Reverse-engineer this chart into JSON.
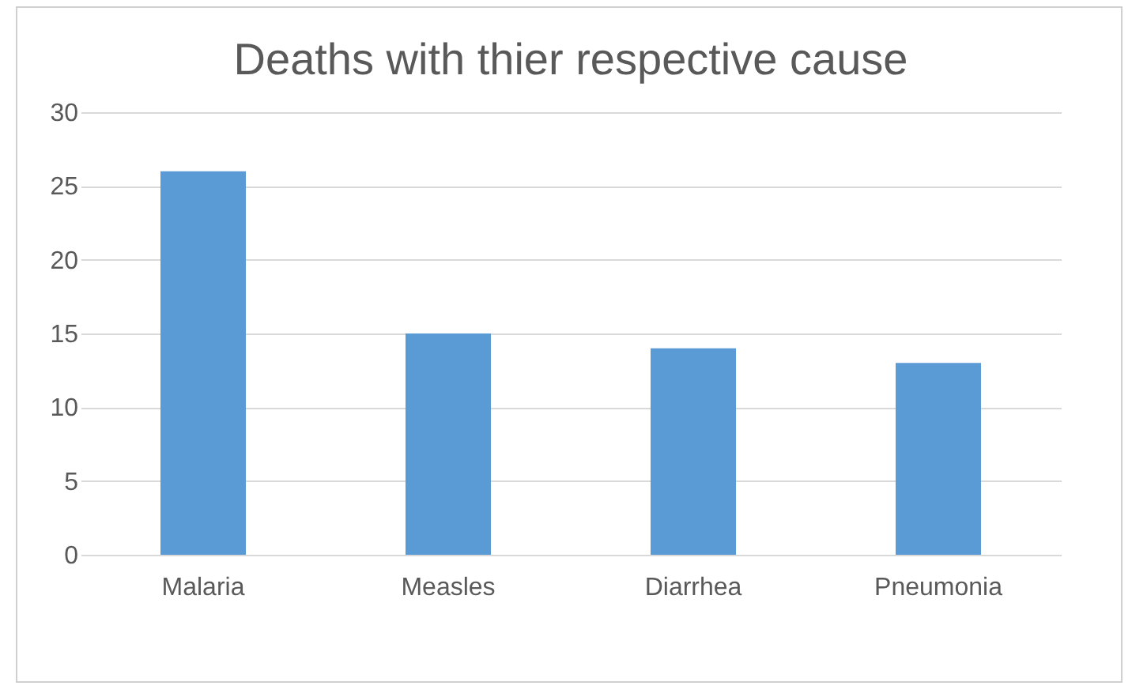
{
  "chart_data": {
    "type": "bar",
    "title": "Deaths with thier respective cause",
    "categories": [
      "Malaria",
      "Measles",
      "Diarrhea",
      "Pneumonia"
    ],
    "values": [
      26,
      15,
      14,
      13
    ],
    "color": "#5b9bd5",
    "ylim": [
      0,
      30
    ],
    "yticks": [
      0,
      5,
      10,
      15,
      20,
      25,
      30
    ],
    "grid": "y"
  }
}
